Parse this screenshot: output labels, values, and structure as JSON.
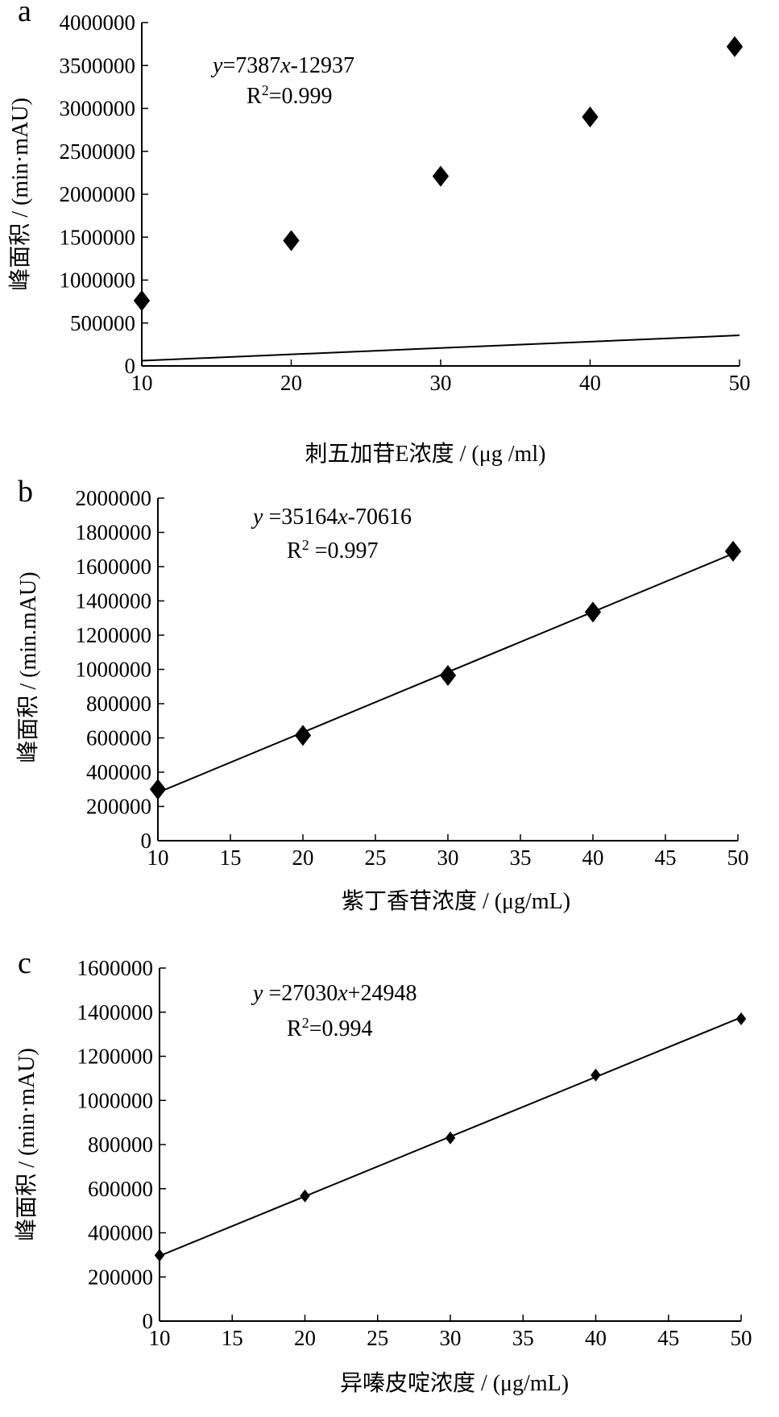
{
  "chart_data": [
    {
      "panel_letter": "a",
      "type": "scatter",
      "xlabel": "刺五加苷E浓度 / (μg /ml)",
      "ylabel": "峰面积 / (min·mAU)",
      "equation": [
        "y",
        "=7387",
        "x",
        "-12937"
      ],
      "r2": [
        "R",
        "2",
        "=0.999"
      ],
      "xlim": [
        10,
        50
      ],
      "ylim": [
        0,
        4000000
      ],
      "xticks": [
        "10",
        "20",
        "30",
        "40",
        "50"
      ],
      "yticks": [
        "0",
        "500000",
        "1000000",
        "1500000",
        "2000000",
        "2500000",
        "3000000",
        "3500000",
        "4000000"
      ],
      "x": [
        10,
        20,
        30,
        40,
        50
      ],
      "y": [
        760000,
        1460000,
        2210000,
        2900000,
        3720000
      ],
      "trendline": {
        "slope": 7387,
        "intercept": -12937
      }
    },
    {
      "panel_letter": "b",
      "type": "scatter",
      "xlabel": "紫丁香苷浓度 / (μg/mL)",
      "ylabel": "峰面积 / (min.mAU)",
      "equation": [
        "y",
        " =35164",
        "x",
        "-70616"
      ],
      "r2": [
        "R",
        "2",
        " =0.997"
      ],
      "xlim": [
        10,
        50
      ],
      "ylim": [
        0,
        2000000
      ],
      "xticks": [
        "10",
        "15",
        "20",
        "25",
        "30",
        "35",
        "40",
        "45",
        "50"
      ],
      "yticks": [
        "0",
        "200000",
        "400000",
        "600000",
        "800000",
        "1000000",
        "1200000",
        "1400000",
        "1600000",
        "1800000",
        "2000000"
      ],
      "x": [
        10,
        20,
        30,
        40,
        50
      ],
      "y": [
        300000,
        615000,
        965000,
        1335000,
        1690000
      ],
      "trendline": {
        "slope": 35164,
        "intercept": -70616
      }
    },
    {
      "panel_letter": "c",
      "type": "scatter",
      "xlabel": "异嗪皮啶浓度 / (μg/mL)",
      "ylabel": "峰面积 / (min·mAU)",
      "equation": [
        "y",
        " =27030",
        "x",
        "+24948"
      ],
      "r2": [
        "R",
        "2",
        "=0.994"
      ],
      "xlim": [
        10,
        50
      ],
      "ylim": [
        0,
        1600000
      ],
      "xticks": [
        "10",
        "15",
        "20",
        "25",
        "30",
        "35",
        "40",
        "45",
        "50"
      ],
      "yticks": [
        "0",
        "200000",
        "400000",
        "600000",
        "800000",
        "1000000",
        "1200000",
        "1400000",
        "1600000"
      ],
      "x": [
        10,
        20,
        30,
        40,
        50
      ],
      "y": [
        298000,
        567000,
        830000,
        1115000,
        1370000
      ],
      "trendline": {
        "slope": 27030,
        "intercept": 24948
      }
    }
  ]
}
